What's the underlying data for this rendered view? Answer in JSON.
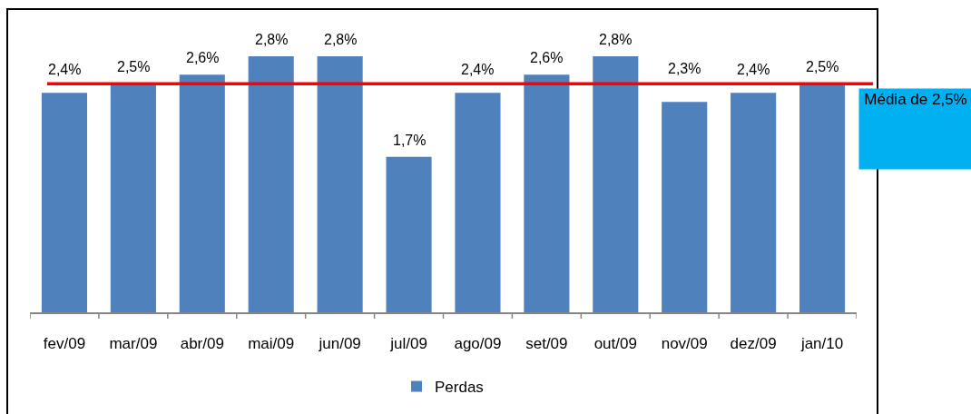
{
  "chart_data": {
    "type": "bar",
    "categories": [
      "fev/09",
      "mar/09",
      "abr/09",
      "mai/09",
      "jun/09",
      "jul/09",
      "ago/09",
      "set/09",
      "out/09",
      "nov/09",
      "dez/09",
      "jan/10"
    ],
    "series": [
      {
        "name": "Perdas",
        "color": "#4f81bd",
        "values": [
          2.4,
          2.5,
          2.6,
          2.8,
          2.8,
          1.7,
          2.4,
          2.6,
          2.8,
          2.3,
          2.4,
          2.5
        ],
        "value_labels": [
          "2,4%",
          "2,5%",
          "2,6%",
          "2,8%",
          "2,8%",
          "1,7%",
          "2,4%",
          "2,6%",
          "2,8%",
          "2,3%",
          "2,4%",
          "2,5%"
        ]
      }
    ],
    "tick_labels": "x",
    "ref_lines": [
      {
        "axis": "y",
        "value": 2.5,
        "label": "Média de 2,5%",
        "color": "#ff0000"
      }
    ],
    "legend": "bottom"
  }
}
